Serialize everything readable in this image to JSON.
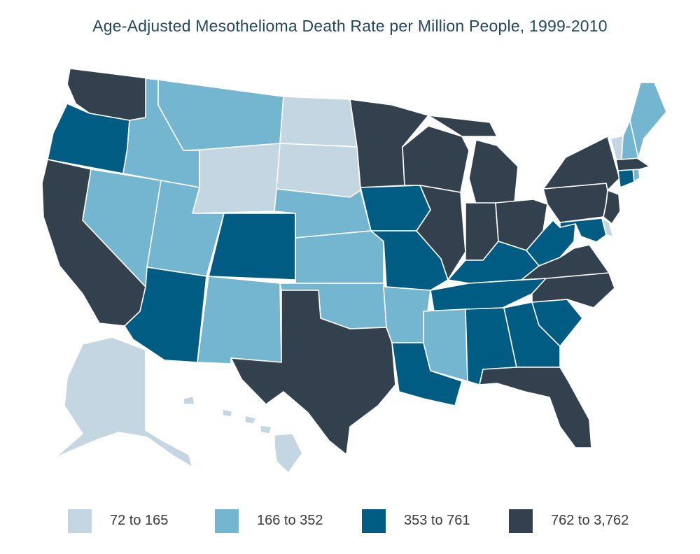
{
  "title": "Age-Adjusted Mesothelioma Death Rate per Million People, 1999-2010",
  "colors": {
    "c1": "#c4d6e2",
    "c2": "#74b5cf",
    "c3": "#005c82",
    "c4": "#33404e"
  },
  "legend": [
    {
      "label": "72 to 165",
      "color": "#c4d6e2"
    },
    {
      "label": "166 to 352",
      "color": "#74b5cf"
    },
    {
      "label": "353 to 761",
      "color": "#005c82"
    },
    {
      "label": "762 to 3,762",
      "color": "#33404e"
    }
  ],
  "states": [
    {
      "name": "WA",
      "bin": 4
    },
    {
      "name": "OR",
      "bin": 3
    },
    {
      "name": "CA",
      "bin": 4
    },
    {
      "name": "NV",
      "bin": 2
    },
    {
      "name": "ID",
      "bin": 2
    },
    {
      "name": "MT",
      "bin": 2
    },
    {
      "name": "WY",
      "bin": 1
    },
    {
      "name": "UT",
      "bin": 2
    },
    {
      "name": "AZ",
      "bin": 3
    },
    {
      "name": "CO",
      "bin": 3
    },
    {
      "name": "NM",
      "bin": 2
    },
    {
      "name": "ND",
      "bin": 1
    },
    {
      "name": "SD",
      "bin": 1
    },
    {
      "name": "NE",
      "bin": 2
    },
    {
      "name": "KS",
      "bin": 2
    },
    {
      "name": "OK",
      "bin": 2
    },
    {
      "name": "TX",
      "bin": 4
    },
    {
      "name": "MN",
      "bin": 4
    },
    {
      "name": "IA",
      "bin": 3
    },
    {
      "name": "MO",
      "bin": 3
    },
    {
      "name": "AR",
      "bin": 2
    },
    {
      "name": "LA",
      "bin": 3
    },
    {
      "name": "WI",
      "bin": 4
    },
    {
      "name": "IL",
      "bin": 4
    },
    {
      "name": "MI",
      "bin": 4
    },
    {
      "name": "IN",
      "bin": 4
    },
    {
      "name": "OH",
      "bin": 4
    },
    {
      "name": "KY",
      "bin": 3
    },
    {
      "name": "TN",
      "bin": 3
    },
    {
      "name": "MS",
      "bin": 2
    },
    {
      "name": "AL",
      "bin": 3
    },
    {
      "name": "GA",
      "bin": 3
    },
    {
      "name": "FL",
      "bin": 4
    },
    {
      "name": "SC",
      "bin": 3
    },
    {
      "name": "NC",
      "bin": 4
    },
    {
      "name": "VA",
      "bin": 4
    },
    {
      "name": "WV",
      "bin": 3
    },
    {
      "name": "MD",
      "bin": 3
    },
    {
      "name": "DE",
      "bin": 1
    },
    {
      "name": "NJ",
      "bin": 4
    },
    {
      "name": "PA",
      "bin": 4
    },
    {
      "name": "NY",
      "bin": 4
    },
    {
      "name": "CT",
      "bin": 3
    },
    {
      "name": "RI",
      "bin": 2
    },
    {
      "name": "MA",
      "bin": 4
    },
    {
      "name": "VT",
      "bin": 1
    },
    {
      "name": "NH",
      "bin": 2
    },
    {
      "name": "ME",
      "bin": 2
    },
    {
      "name": "AK",
      "bin": 1
    },
    {
      "name": "HI",
      "bin": 1
    }
  ]
}
